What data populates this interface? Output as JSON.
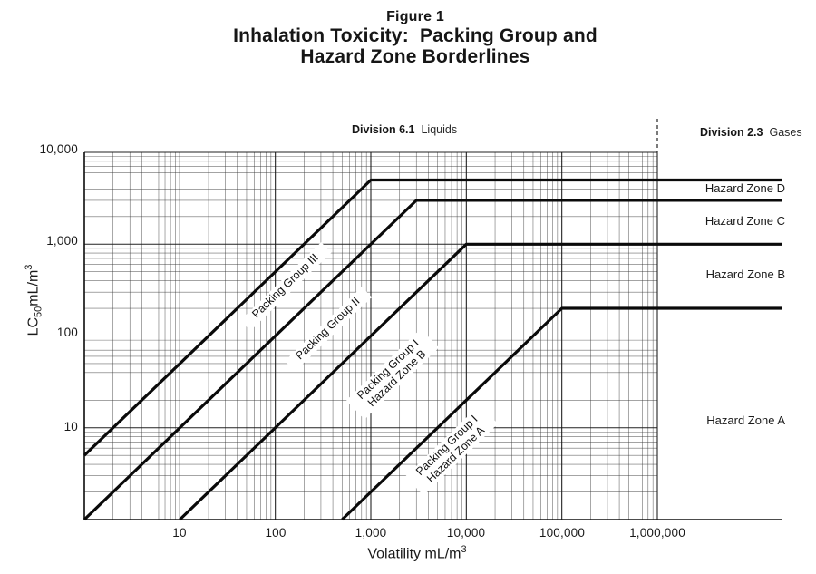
{
  "page": {
    "background": "#ffffff",
    "ink": "#141414"
  },
  "title": {
    "figure_label": "Figure 1",
    "line1": "Inhalation Toxicity:  Packing Group and",
    "line2": "Hazard Zone Borderlines"
  },
  "divisions": {
    "liquids_bold": "Division 6.1",
    "liquids_normal": "Liquids",
    "gases_bold": "Division 2.3",
    "gases_normal": "Gases"
  },
  "hazard_zone_labels": [
    "Hazard Zone D",
    "Hazard Zone C",
    "Hazard Zone B",
    "Hazard Zone A"
  ],
  "packing_labels": {
    "pg3": "Packing Group III",
    "pg2": "Packing Group II",
    "pg1b_line1": "Packing Group I",
    "pg1b_line2": "Hazard Zone B",
    "pg1a_line1": "Packing Group I",
    "pg1a_line2": "Hazard Zone A"
  },
  "axes": {
    "x_title_base": "Volatility mL/m",
    "x_title_sup": "3",
    "y_title_lc": "LC",
    "y_title_sub": "50",
    "y_title_units": "mL/m",
    "y_title_sup": "3",
    "x_tick_labels": [
      "10",
      "100",
      "1,000",
      "10,000",
      "100,000",
      "1,000,000"
    ],
    "y_tick_labels": [
      "10,000",
      "1,000",
      "100",
      "10"
    ]
  },
  "chart_data": {
    "type": "line",
    "title": "Inhalation Toxicity: Packing Group and Hazard Zone Borderlines",
    "xlabel": "Volatility mL/m3",
    "ylabel": "LC50 mL/m3",
    "x_scale": "log",
    "y_scale": "log",
    "xlim": [
      1,
      1000000
    ],
    "ylim": [
      1,
      10000
    ],
    "x_ticks": [
      10,
      100,
      1000,
      10000,
      100000,
      1000000
    ],
    "y_ticks": [
      10,
      100,
      1000,
      10000
    ],
    "grid": "log major and minor gridlines on both axes",
    "legend_position": "none",
    "series": [
      {
        "name": "Packing Group III borderline",
        "points": [
          [
            1,
            5
          ],
          [
            1000,
            5000
          ]
        ],
        "plateau_lc50": 5000,
        "relation": "LC50 = 5 x V up to V = 1,000, then constant at 5,000"
      },
      {
        "name": "Packing Group II borderline",
        "points": [
          [
            1,
            1
          ],
          [
            3000,
            3000
          ]
        ],
        "plateau_lc50": 3000,
        "relation": "LC50 = V up to V = 3,000, then constant at 3,000"
      },
      {
        "name": "Packing Group I Hazard Zone B borderline",
        "points": [
          [
            10,
            1
          ],
          [
            10000,
            1000
          ]
        ],
        "plateau_lc50": 1000,
        "relation": "LC50 = V/10 up to V = 10,000, then constant at 1,000"
      },
      {
        "name": "Packing Group I Hazard Zone A borderline",
        "points": [
          [
            500,
            1
          ],
          [
            100000,
            200
          ]
        ],
        "plateau_lc50": 200,
        "relation": "LC50 = V/500 up to V = 100,000, then constant at 200"
      }
    ],
    "right_panel_lines_lc50": [
      5000,
      3000,
      1000,
      200
    ],
    "divider": {
      "x": 1000000,
      "style": "dashed",
      "separates": [
        "Division 6.1 Liquids",
        "Division 2.3 Gases"
      ]
    }
  }
}
